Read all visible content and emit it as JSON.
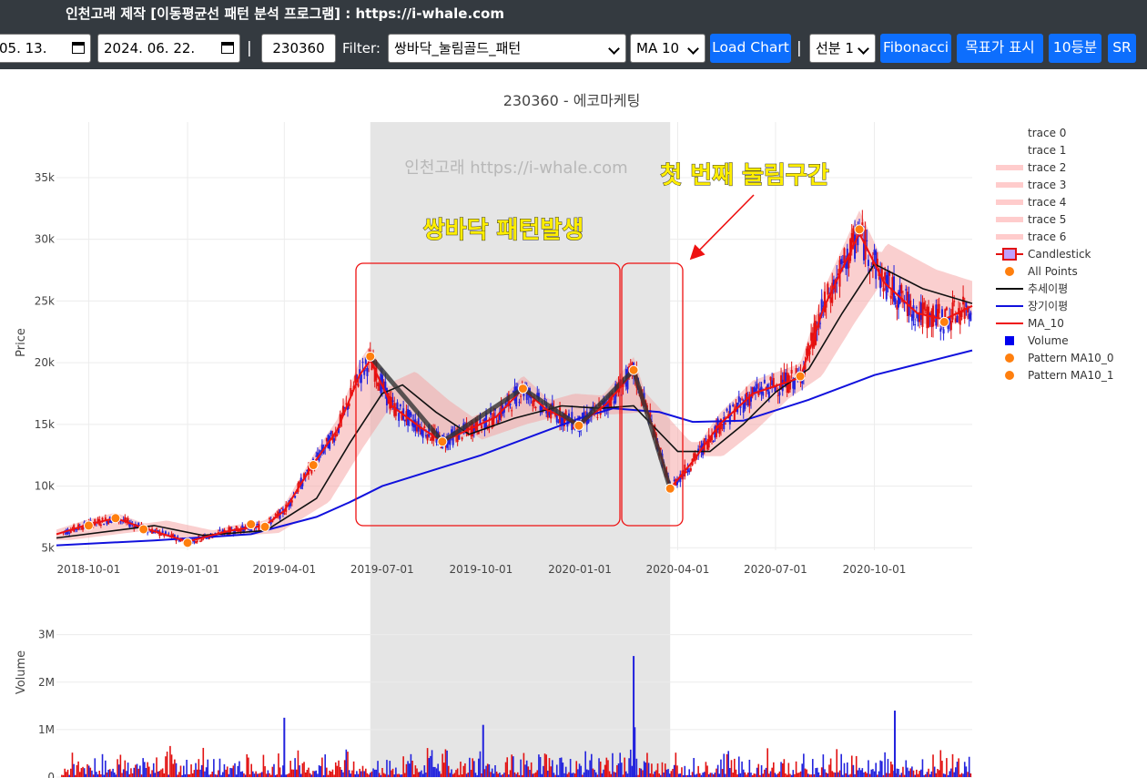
{
  "app_title": "인천고래 제작 [이동평균선 패턴 분석 프로그램] : https://i-whale.com",
  "toolbar": {
    "start_date": "05. 13.",
    "end_date": "2024. 06. 22.",
    "separator": "|",
    "ticker": "230360",
    "filter_label": "Filter:",
    "filter_value": "쌍바닥_눌림골드_패턴",
    "ma_value": "MA 10",
    "load_chart": "Load Chart",
    "line_value": "선분 1",
    "fibonacci": "Fibonacci",
    "target_price": "목표가 표시",
    "ten_split": "10등분",
    "sr": "SR"
  },
  "chart_data": {
    "type": "candlestick",
    "title": "230360 - 에코마케팅",
    "watermark": "인천고래 https://i-whale.com",
    "ylabel": "Price",
    "ylim": [
      4800,
      39500
    ],
    "yticks": [
      5000,
      10000,
      15000,
      20000,
      25000,
      30000,
      35000
    ],
    "ytick_labels": [
      "5k",
      "10k",
      "15k",
      "20k",
      "25k",
      "30k",
      "35k"
    ],
    "xlim": [
      "2018-09-01",
      "2020-12-31"
    ],
    "xticks": [
      "2018-10-01",
      "2019-01-01",
      "2019-04-01",
      "2019-07-01",
      "2019-10-01",
      "2020-01-01",
      "2020-04-01",
      "2020-07-01",
      "2020-10-01"
    ],
    "xtick_labels": [
      "2018-10-01",
      "2019-01-01",
      "2019-04-01",
      "2019-07-01",
      "2019-10-01",
      "2020-01-01",
      "2020-04-01",
      "2020-07-01",
      "2020-10-01"
    ],
    "highlight_range": [
      "2019-06-20",
      "2020-03-25"
    ],
    "grid": true,
    "legend_position": "right",
    "legend": [
      "trace 0",
      "trace 1",
      "trace 2",
      "trace 3",
      "trace 4",
      "trace 5",
      "trace 6",
      "Candlestick",
      "All Points",
      "추세이평",
      "장기이평",
      "MA_10",
      "Volume",
      "Pattern MA10_0",
      "Pattern MA10_1"
    ],
    "pattern_line": [
      {
        "x": "2019-06-20",
        "y": 20500
      },
      {
        "x": "2019-08-26",
        "y": 13600
      },
      {
        "x": "2019-11-09",
        "y": 17900
      },
      {
        "x": "2019-12-31",
        "y": 14900
      },
      {
        "x": "2020-02-20",
        "y": 19400
      },
      {
        "x": "2020-03-25",
        "y": 9800
      }
    ],
    "all_points": [
      {
        "x": "2018-10-01",
        "y": 6800
      },
      {
        "x": "2018-10-26",
        "y": 7400
      },
      {
        "x": "2018-11-21",
        "y": 6500
      },
      {
        "x": "2019-01-01",
        "y": 5400
      },
      {
        "x": "2019-03-01",
        "y": 6900
      },
      {
        "x": "2019-03-14",
        "y": 6700
      },
      {
        "x": "2019-04-28",
        "y": 11700
      },
      {
        "x": "2019-06-20",
        "y": 20500
      },
      {
        "x": "2019-08-26",
        "y": 13600
      },
      {
        "x": "2019-11-09",
        "y": 17900
      },
      {
        "x": "2019-12-31",
        "y": 14900
      },
      {
        "x": "2020-02-20",
        "y": 19400
      },
      {
        "x": "2020-03-25",
        "y": 9800
      },
      {
        "x": "2020-07-24",
        "y": 18900
      },
      {
        "x": "2020-09-17",
        "y": 30800
      },
      {
        "x": "2020-12-05",
        "y": 23300
      }
    ],
    "ma10": [
      [
        "2018-09-01",
        6100
      ],
      [
        "2018-10-01",
        6900
      ],
      [
        "2018-10-26",
        7400
      ],
      [
        "2018-11-21",
        6600
      ],
      [
        "2019-01-01",
        5500
      ],
      [
        "2019-02-10",
        6400
      ],
      [
        "2019-03-14",
        6800
      ],
      [
        "2019-04-01",
        8000
      ],
      [
        "2019-04-28",
        11800
      ],
      [
        "2019-05-20",
        14500
      ],
      [
        "2019-06-10",
        19000
      ],
      [
        "2019-06-20",
        20200
      ],
      [
        "2019-07-10",
        16500
      ],
      [
        "2019-08-05",
        14800
      ],
      [
        "2019-08-26",
        13600
      ],
      [
        "2019-09-20",
        14600
      ],
      [
        "2019-10-15",
        15600
      ],
      [
        "2019-11-09",
        17900
      ],
      [
        "2019-12-01",
        16200
      ],
      [
        "2019-12-31",
        15000
      ],
      [
        "2020-01-25",
        16600
      ],
      [
        "2020-02-20",
        19300
      ],
      [
        "2020-03-10",
        14500
      ],
      [
        "2020-03-25",
        9800
      ],
      [
        "2020-04-15",
        12000
      ],
      [
        "2020-05-10",
        15000
      ],
      [
        "2020-06-10",
        17500
      ],
      [
        "2020-07-24",
        18800
      ],
      [
        "2020-08-15",
        24500
      ],
      [
        "2020-09-17",
        30500
      ],
      [
        "2020-10-10",
        26500
      ],
      [
        "2020-11-10",
        24000
      ],
      [
        "2020-12-05",
        23500
      ],
      [
        "2020-12-31",
        24600
      ]
    ],
    "trend_ma": [
      [
        "2018-09-01",
        5800
      ],
      [
        "2018-12-01",
        6800
      ],
      [
        "2019-01-15",
        6000
      ],
      [
        "2019-03-15",
        6400
      ],
      [
        "2019-05-01",
        9000
      ],
      [
        "2019-06-01",
        13500
      ],
      [
        "2019-07-01",
        17500
      ],
      [
        "2019-07-20",
        18200
      ],
      [
        "2019-08-20",
        16000
      ],
      [
        "2019-09-20",
        14200
      ],
      [
        "2019-11-01",
        15500
      ],
      [
        "2019-12-15",
        16500
      ],
      [
        "2020-01-20",
        16300
      ],
      [
        "2020-02-20",
        16500
      ],
      [
        "2020-04-01",
        12800
      ],
      [
        "2020-05-01",
        12800
      ],
      [
        "2020-06-01",
        15000
      ],
      [
        "2020-07-01",
        17600
      ],
      [
        "2020-08-01",
        19500
      ],
      [
        "2020-09-01",
        24000
      ],
      [
        "2020-10-01",
        28000
      ],
      [
        "2020-11-15",
        26000
      ],
      [
        "2020-12-31",
        24800
      ]
    ],
    "long_ma": [
      [
        "2018-09-01",
        5200
      ],
      [
        "2018-12-01",
        5600
      ],
      [
        "2019-03-01",
        6100
      ],
      [
        "2019-05-01",
        7500
      ],
      [
        "2019-06-01",
        8700
      ],
      [
        "2019-07-01",
        10000
      ],
      [
        "2019-10-01",
        12500
      ],
      [
        "2020-01-01",
        15500
      ],
      [
        "2020-02-01",
        16300
      ],
      [
        "2020-03-15",
        16000
      ],
      [
        "2020-04-15",
        15200
      ],
      [
        "2020-06-01",
        15300
      ],
      [
        "2020-08-01",
        17000
      ],
      [
        "2020-10-01",
        19000
      ],
      [
        "2020-12-31",
        21000
      ]
    ],
    "volume": {
      "ylabel": "Volume",
      "ylim": [
        0,
        3300000
      ],
      "yticks": [
        0,
        1000000,
        2000000,
        3000000
      ],
      "ytick_labels": [
        "0",
        "1M",
        "2M",
        "3M"
      ],
      "peaks": [
        {
          "x": "2020-02-20",
          "y": 2550000
        },
        {
          "x": "2020-02-21",
          "y": 1050000
        },
        {
          "x": "2020-10-20",
          "y": 1400000
        },
        {
          "x": "2019-04-01",
          "y": 1250000
        },
        {
          "x": "2019-10-03",
          "y": 1100000
        }
      ]
    }
  },
  "annotations": {
    "double_bottom": "쌍바닥 패턴발생",
    "first_pullback": "첫 번째 눌림구간"
  },
  "colors": {
    "ma10": "#ee1111",
    "trend": "#111111",
    "long": "#1111dd",
    "band": "#f5a0a0",
    "highlight": "#e5e5e5",
    "annotation": "#ffee00",
    "up_candle": "#e21111",
    "down_candle": "#2222dd"
  }
}
